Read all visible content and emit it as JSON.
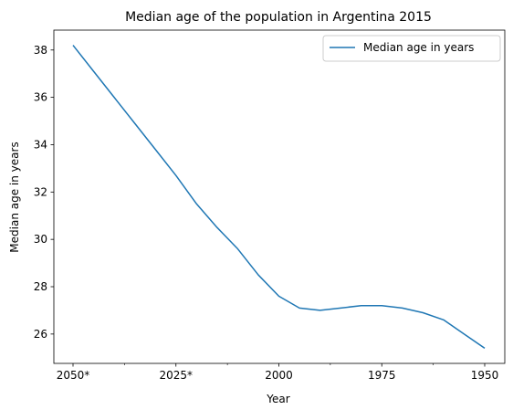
{
  "chart_data": {
    "type": "line",
    "title": "Median age of the population in Argentina 2015",
    "xlabel": "Year",
    "ylabel": "Median age in years",
    "x": [
      "2050*",
      "2045*",
      "2040*",
      "2035*",
      "2030*",
      "2025*",
      "2020*",
      "2015",
      "2010",
      "2005",
      "2000",
      "1995",
      "1990",
      "1985",
      "1980",
      "1975",
      "1970",
      "1965",
      "1960",
      "1955",
      "1950"
    ],
    "x_tick_labels": [
      "2050*",
      "2025*",
      "2000",
      "1975",
      "1950"
    ],
    "series": [
      {
        "name": "Median age in years",
        "color": "#1f77b4",
        "values": [
          38.2,
          37.1,
          36.0,
          34.9,
          33.8,
          32.7,
          31.5,
          30.5,
          29.6,
          28.5,
          27.6,
          27.1,
          27.0,
          27.1,
          27.2,
          27.2,
          27.1,
          26.9,
          26.6,
          26.0,
          25.4
        ]
      }
    ],
    "yticks": [
      26,
      28,
      30,
      32,
      34,
      36,
      38
    ],
    "ylim": [
      24.76,
      38.84
    ],
    "grid": false,
    "legend_position": "top-right"
  }
}
